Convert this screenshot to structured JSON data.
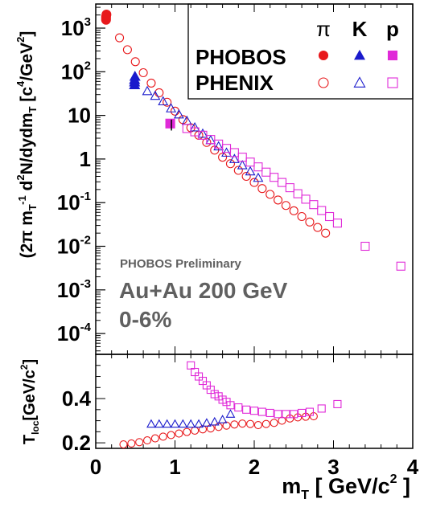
{
  "chart_data": [
    {
      "type": "scatter",
      "ylabel": "(2π m_T)^-1 d^2N/dydm_T [c^4/GeV^2]",
      "yscale": "log",
      "xlim": [
        0,
        4
      ],
      "ylim": [
        3e-05,
        3000
      ],
      "ytick_labels": [
        "10^-4",
        "10^-3",
        "10^-2",
        "10^-1",
        "1",
        "10",
        "10^2",
        "10^3"
      ],
      "legend": {
        "placement": "top-right",
        "columns": [
          "π",
          "K",
          "p"
        ],
        "rows": [
          "PHOBOS",
          "PHENIX"
        ]
      },
      "annotations": [
        "PHOBOS Preliminary",
        "Au+Au 200 GeV",
        "0-6%"
      ],
      "colors": {
        "pi": "#e8191c",
        "K": "#1a1acc",
        "p": "#e02ad8"
      },
      "series": [
        {
          "name": "PHOBOS π",
          "marker": "filled-circle",
          "color": "#e8191c",
          "x": [
            0.13,
            0.13,
            0.13,
            0.135
          ],
          "y": [
            1550,
            1700,
            1850,
            2050
          ]
        },
        {
          "name": "PHOBOS K",
          "marker": "filled-triangle",
          "color": "#1a1acc",
          "x": [
            0.49,
            0.49,
            0.49,
            0.495
          ],
          "y": [
            50,
            58,
            66,
            78
          ]
        },
        {
          "name": "PHOBOS p",
          "marker": "filled-square",
          "color": "#e02ad8",
          "x": [
            0.94
          ],
          "y": [
            6.5
          ]
        },
        {
          "name": "PHENIX π",
          "marker": "open-circle",
          "color": "#e8191c",
          "x": [
            0.3,
            0.4,
            0.5,
            0.6,
            0.7,
            0.8,
            0.9,
            1.0,
            1.1,
            1.2,
            1.3,
            1.4,
            1.5,
            1.6,
            1.7,
            1.8,
            1.9,
            2.0,
            2.1,
            2.2,
            2.3,
            2.4,
            2.5,
            2.6,
            2.7,
            2.8,
            2.9
          ],
          "y": [
            600,
            320,
            170,
            95,
            55,
            33,
            20,
            12.5,
            8,
            5.2,
            3.5,
            2.4,
            1.6,
            1.1,
            0.78,
            0.55,
            0.4,
            0.29,
            0.21,
            0.155,
            0.115,
            0.086,
            0.065,
            0.048,
            0.036,
            0.027,
            0.02
          ]
        },
        {
          "name": "PHENIX K",
          "marker": "open-triangle",
          "color": "#1a1acc",
          "x": [
            0.65,
            0.75,
            0.85,
            0.95,
            1.05,
            1.15,
            1.25,
            1.35,
            1.45,
            1.55,
            1.65,
            1.75,
            1.85,
            1.95,
            2.05
          ],
          "y": [
            36,
            28,
            21,
            14.5,
            10.5,
            7.5,
            5.3,
            3.8,
            2.7,
            1.95,
            1.4,
            1.0,
            0.72,
            0.52,
            0.37
          ]
        },
        {
          "name": "PHENIX p",
          "marker": "open-square",
          "color": "#e02ad8",
          "x": [
            1.15,
            1.25,
            1.35,
            1.45,
            1.55,
            1.65,
            1.75,
            1.85,
            1.95,
            2.05,
            2.15,
            2.25,
            2.35,
            2.45,
            2.55,
            2.65,
            2.75,
            2.85,
            2.95,
            3.05,
            3.4,
            3.85
          ],
          "y": [
            5.0,
            4.2,
            3.5,
            2.8,
            2.2,
            1.75,
            1.4,
            1.1,
            0.85,
            0.66,
            0.5,
            0.38,
            0.29,
            0.22,
            0.16,
            0.12,
            0.09,
            0.066,
            0.048,
            0.034,
            0.01,
            0.0035
          ]
        }
      ]
    },
    {
      "type": "scatter",
      "ylabel": "T_loc [GeV/c^2]",
      "xlabel": "m_T [ GeV/c^2 ]",
      "xlim": [
        0,
        4
      ],
      "ylim": [
        0.175,
        0.6
      ],
      "xtick_labels": [
        "0",
        "1",
        "2",
        "3",
        "4"
      ],
      "ytick_labels": [
        "0.2",
        "0.4"
      ],
      "series": [
        {
          "name": "π",
          "marker": "open-circle",
          "color": "#e8191c",
          "x": [
            0.35,
            0.45,
            0.55,
            0.65,
            0.75,
            0.85,
            0.95,
            1.05,
            1.15,
            1.25,
            1.35,
            1.45,
            1.55,
            1.65,
            1.75,
            1.85,
            1.95,
            2.05,
            2.15,
            2.25,
            2.35,
            2.45,
            2.55,
            2.65,
            2.75
          ],
          "y": [
            0.193,
            0.197,
            0.203,
            0.211,
            0.22,
            0.228,
            0.235,
            0.242,
            0.249,
            0.255,
            0.261,
            0.265,
            0.272,
            0.278,
            0.283,
            0.287,
            0.285,
            0.28,
            0.285,
            0.29,
            0.3,
            0.31,
            0.315,
            0.318,
            0.32
          ]
        },
        {
          "name": "K",
          "marker": "open-triangle",
          "color": "#1a1acc",
          "x": [
            0.7,
            0.8,
            0.9,
            1.0,
            1.1,
            1.2,
            1.3,
            1.4,
            1.5,
            1.6,
            1.7
          ],
          "y": [
            0.285,
            0.285,
            0.285,
            0.285,
            0.285,
            0.285,
            0.285,
            0.29,
            0.295,
            0.305,
            0.33
          ]
        },
        {
          "name": "p",
          "marker": "open-square",
          "color": "#e02ad8",
          "x": [
            1.2,
            1.25,
            1.3,
            1.35,
            1.4,
            1.45,
            1.5,
            1.55,
            1.6,
            1.65,
            1.7,
            1.8,
            1.9,
            2.0,
            2.1,
            2.2,
            2.3,
            2.4,
            2.5,
            2.6,
            2.7,
            2.85,
            3.05
          ],
          "y": [
            0.55,
            0.52,
            0.5,
            0.48,
            0.46,
            0.44,
            0.42,
            0.41,
            0.395,
            0.385,
            0.37,
            0.36,
            0.35,
            0.345,
            0.34,
            0.335,
            0.33,
            0.33,
            0.33,
            0.335,
            0.34,
            0.355,
            0.375
          ]
        }
      ]
    }
  ]
}
